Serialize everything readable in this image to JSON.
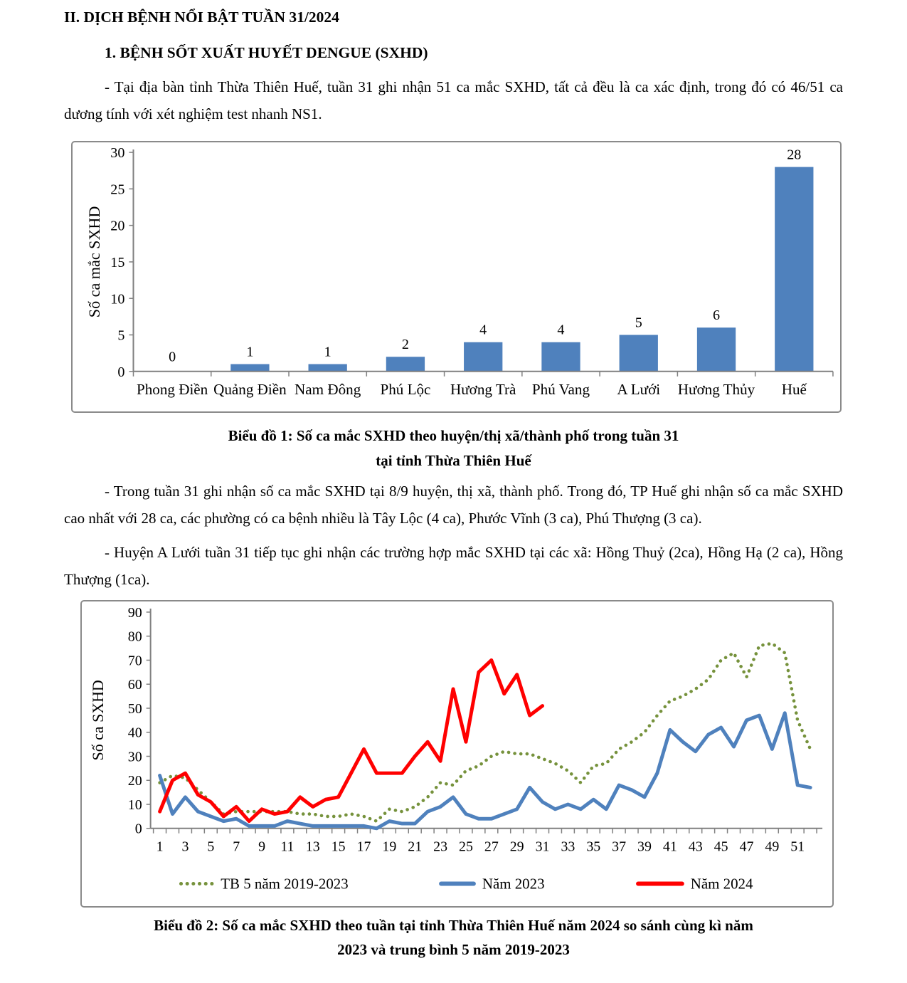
{
  "document": {
    "heading1": "II. DỊCH BỆNH NỔI BẬT TUẦN 31/2024",
    "heading2": "1. BỆNH SỐT XUẤT HUYẾT DENGUE (SXHD)",
    "para1": "- Tại địa bàn tỉnh Thừa Thiên Huế, tuần 31 ghi nhận 51 ca mắc SXHD, tất cả đều là ca xác định, trong đó có 46/51 ca dương tính với xét nghiệm test nhanh NS1.",
    "caption1_line1": "Biểu đồ 1: Số ca mắc SXHD theo huyện/thị xã/thành phố trong tuần 31",
    "caption1_line2": "tại tỉnh Thừa Thiên Huế",
    "para2": "- Trong tuần 31 ghi nhận số ca mắc SXHD tại 8/9 huyện, thị xã, thành phố. Trong đó, TP Huế ghi nhận số ca mắc SXHD cao nhất với 28 ca, các phường có ca bệnh nhiều là Tây Lộc (4 ca), Phước Vĩnh (3 ca), Phú Thượng (3 ca).",
    "para3": "- Huyện A Lưới tuần 31 tiếp tục ghi nhận các trường hợp mắc SXHD tại các xã: Hồng Thuỷ (2ca), Hồng Hạ (2 ca), Hồng Thượng (1ca).",
    "caption2_line1": "Biểu đồ 2: Số ca mắc SXHD theo tuần tại tỉnh Thừa Thiên Huế năm 2024 so sánh cùng kì năm",
    "caption2_line2": "2023 và trung bình 5 năm 2019-2023"
  },
  "chart_data": [
    {
      "type": "bar",
      "title": "Số ca mắc SXHD theo huyện/thị xã/thành phố trong tuần 31 tại tỉnh Thừa Thiên Huế",
      "ylabel": "Số ca mắc SXHD",
      "xlabel": "",
      "categories": [
        "Phong Điền",
        "Quảng Điền",
        "Nam Đông",
        "Phú Lộc",
        "Hương Trà",
        "Phú Vang",
        "A Lưới",
        "Hương Thủy",
        "Huế"
      ],
      "values": [
        0,
        1,
        1,
        2,
        4,
        4,
        5,
        6,
        28
      ],
      "ylim": [
        0,
        30
      ],
      "ytick_step": 5,
      "grid": false,
      "data_labels": true,
      "bar_color": "#4f81bd"
    },
    {
      "type": "line",
      "title": "Số ca mắc SXHD theo tuần tại tỉnh Thừa Thiên Huế năm 2024 so sánh cùng kì năm 2023 và trung bình 5 năm 2019-2023",
      "ylabel": "Số ca SXHD",
      "xlabel": "",
      "weeks": 52,
      "xtick_labels": [
        1,
        3,
        5,
        7,
        9,
        11,
        13,
        15,
        17,
        19,
        21,
        23,
        25,
        27,
        29,
        31,
        33,
        35,
        37,
        39,
        41,
        43,
        45,
        47,
        49,
        51
      ],
      "ylim": [
        0,
        90
      ],
      "ytick_step": 10,
      "grid": false,
      "legend_position": "bottom",
      "series": [
        {
          "name": "TB 5 năm 2019-2023",
          "style": "dotted",
          "color": "#76923c",
          "values": [
            19,
            22,
            21,
            16,
            11,
            6,
            7,
            7,
            7,
            7,
            7,
            6,
            6,
            5,
            5,
            6,
            5,
            3,
            8,
            7,
            9,
            13,
            19,
            18,
            24,
            26,
            30,
            32,
            31,
            31,
            29,
            27,
            24,
            19,
            26,
            27,
            33,
            36,
            40,
            47,
            53,
            55,
            58,
            62,
            70,
            73,
            63,
            76,
            77,
            73,
            45,
            33
          ]
        },
        {
          "name": "Năm 2023",
          "style": "solid",
          "color": "#4f81bd",
          "values": [
            22,
            6,
            13,
            7,
            5,
            3,
            4,
            1,
            1,
            1,
            3,
            2,
            1,
            1,
            1,
            1,
            1,
            0,
            3,
            2,
            2,
            7,
            9,
            13,
            6,
            4,
            4,
            6,
            8,
            17,
            11,
            8,
            10,
            8,
            12,
            8,
            18,
            16,
            13,
            23,
            41,
            36,
            32,
            39,
            42,
            34,
            45,
            47,
            33,
            48,
            18,
            17
          ]
        },
        {
          "name": "Năm 2024",
          "style": "solid",
          "color": "#ff0000",
          "values": [
            7,
            20,
            23,
            14,
            11,
            5,
            9,
            3,
            8,
            6,
            7,
            13,
            9,
            12,
            13,
            23,
            33,
            23,
            23,
            23,
            30,
            36,
            28,
            58,
            36,
            65,
            70,
            56,
            64,
            47,
            51
          ]
        }
      ]
    }
  ]
}
